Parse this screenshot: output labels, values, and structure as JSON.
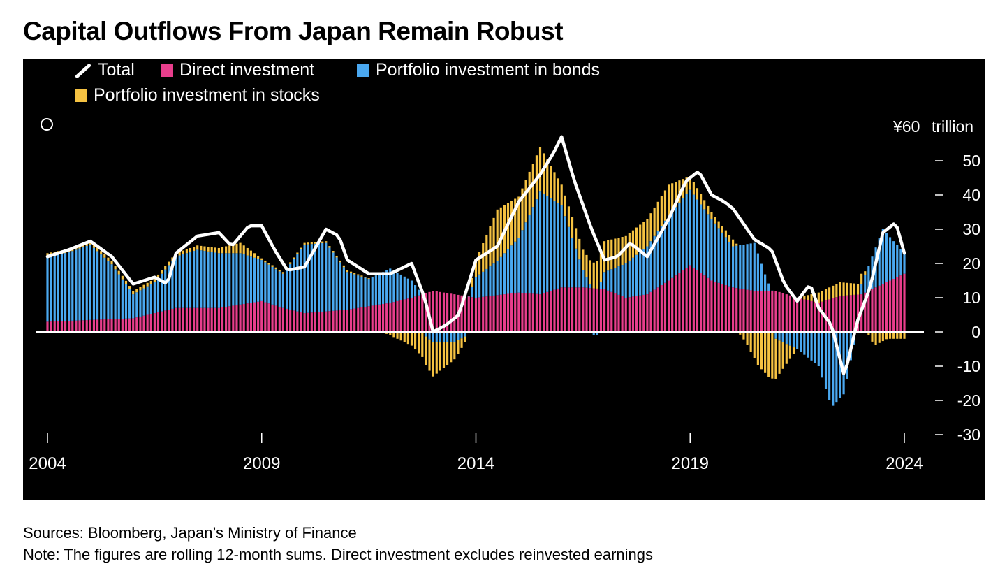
{
  "title": "Capital Outflows From Japan Remain Robust",
  "footer": {
    "sources": "Sources: Bloomberg, Japan’s Ministry of Finance",
    "note": "Note: The figures are rolling 12-month sums. Direct investment excludes reinvested earnings"
  },
  "colors": {
    "background": "#000000",
    "total": "#ffffff",
    "direct": "#e83e8c",
    "bonds": "#4aa8f0",
    "stocks": "#f5c242",
    "zero_line": "#ffffff"
  },
  "chart_data": {
    "type": "bar",
    "stacked": true,
    "title": "Capital Outflows From Japan Remain Robust",
    "legend_placement": "top-left",
    "grid": false,
    "y_unit_label": "trillion",
    "y_top_label": "¥60",
    "ylim": [
      -30,
      60
    ],
    "y_ticks": [
      -30,
      -20,
      -10,
      0,
      10,
      20,
      30,
      40,
      50
    ],
    "x_ticks": [
      "2004",
      "2009",
      "2014",
      "2019",
      "2024"
    ],
    "x_range": [
      "2004-01",
      "2024-01"
    ],
    "frequency": "monthly",
    "anchors": {
      "direct": [
        [
          2004.0,
          3
        ],
        [
          2005.0,
          3.5
        ],
        [
          2006.0,
          4
        ],
        [
          2006.5,
          5.5
        ],
        [
          2007.0,
          7
        ],
        [
          2008.0,
          7
        ],
        [
          2008.5,
          8
        ],
        [
          2009.0,
          9
        ],
        [
          2009.5,
          7
        ],
        [
          2010.0,
          5.5
        ],
        [
          2011.0,
          6.5
        ],
        [
          2012.0,
          8.5
        ],
        [
          2012.5,
          10
        ],
        [
          2013.0,
          12
        ],
        [
          2013.5,
          11
        ],
        [
          2014.0,
          10
        ],
        [
          2015.0,
          11.5
        ],
        [
          2015.5,
          11
        ],
        [
          2016.0,
          13
        ],
        [
          2016.5,
          13
        ],
        [
          2017.0,
          12.5
        ],
        [
          2017.5,
          10
        ],
        [
          2018.0,
          11
        ],
        [
          2018.5,
          15
        ],
        [
          2019.0,
          19.5
        ],
        [
          2019.5,
          15
        ],
        [
          2020.0,
          13
        ],
        [
          2020.5,
          12
        ],
        [
          2021.0,
          12
        ],
        [
          2021.5,
          10
        ],
        [
          2022.0,
          8.5
        ],
        [
          2022.5,
          10.5
        ],
        [
          2023.0,
          11
        ],
        [
          2023.5,
          14
        ],
        [
          2024.0,
          17
        ]
      ],
      "bonds": [
        [
          2004.0,
          19
        ],
        [
          2004.5,
          20
        ],
        [
          2005.0,
          22
        ],
        [
          2005.5,
          16
        ],
        [
          2006.0,
          7
        ],
        [
          2006.5,
          9
        ],
        [
          2007.0,
          15
        ],
        [
          2007.5,
          17
        ],
        [
          2008.0,
          16
        ],
        [
          2008.5,
          15
        ],
        [
          2009.0,
          12
        ],
        [
          2009.5,
          10
        ],
        [
          2010.0,
          20
        ],
        [
          2010.5,
          20
        ],
        [
          2011.0,
          11
        ],
        [
          2011.5,
          8
        ],
        [
          2012.0,
          10
        ],
        [
          2012.5,
          5
        ],
        [
          2012.8,
          -1
        ],
        [
          2013.0,
          -3
        ],
        [
          2013.5,
          -3
        ],
        [
          2013.8,
          -1
        ],
        [
          2014.0,
          6
        ],
        [
          2014.5,
          10
        ],
        [
          2015.0,
          16
        ],
        [
          2015.5,
          30
        ],
        [
          2016.0,
          24
        ],
        [
          2016.5,
          5
        ],
        [
          2016.8,
          -2
        ],
        [
          2017.0,
          5
        ],
        [
          2017.5,
          10
        ],
        [
          2018.0,
          14
        ],
        [
          2018.5,
          19
        ],
        [
          2019.0,
          22
        ],
        [
          2019.5,
          18
        ],
        [
          2020.0,
          12
        ],
        [
          2020.5,
          14
        ],
        [
          2020.8,
          3
        ],
        [
          2021.0,
          -2
        ],
        [
          2021.5,
          -5
        ],
        [
          2022.0,
          -10
        ],
        [
          2022.3,
          -22
        ],
        [
          2022.6,
          -18
        ],
        [
          2022.8,
          -5
        ],
        [
          2023.0,
          3
        ],
        [
          2023.5,
          16
        ],
        [
          2024.0,
          6
        ]
      ],
      "stocks": [
        [
          2004.0,
          1
        ],
        [
          2005.0,
          1
        ],
        [
          2006.0,
          1
        ],
        [
          2007.0,
          1
        ],
        [
          2008.0,
          1.5
        ],
        [
          2008.5,
          3
        ],
        [
          2009.0,
          0.5
        ],
        [
          2010.0,
          0.5
        ],
        [
          2011.0,
          0.5
        ],
        [
          2011.8,
          0
        ],
        [
          2012.0,
          -1
        ],
        [
          2012.5,
          -4
        ],
        [
          2012.8,
          -8
        ],
        [
          2013.0,
          -10
        ],
        [
          2013.5,
          -5
        ],
        [
          2013.8,
          -1
        ],
        [
          2014.0,
          5
        ],
        [
          2014.5,
          15
        ],
        [
          2015.0,
          12
        ],
        [
          2015.5,
          13
        ],
        [
          2016.0,
          6
        ],
        [
          2016.5,
          6
        ],
        [
          2017.0,
          9
        ],
        [
          2017.5,
          8
        ],
        [
          2018.0,
          8
        ],
        [
          2018.5,
          9
        ],
        [
          2019.0,
          4
        ],
        [
          2019.5,
          2
        ],
        [
          2020.0,
          2
        ],
        [
          2020.3,
          -3
        ],
        [
          2020.6,
          -10
        ],
        [
          2020.9,
          -14
        ],
        [
          2021.2,
          -7
        ],
        [
          2021.5,
          0
        ],
        [
          2022.0,
          3
        ],
        [
          2022.5,
          4
        ],
        [
          2023.0,
          3
        ],
        [
          2023.3,
          -4
        ],
        [
          2023.6,
          -2
        ],
        [
          2024.0,
          -2
        ]
      ],
      "total": [
        [
          2004.0,
          22
        ],
        [
          2004.5,
          24
        ],
        [
          2005.0,
          26.5
        ],
        [
          2005.5,
          22
        ],
        [
          2006.0,
          14
        ],
        [
          2006.5,
          16
        ],
        [
          2006.8,
          14
        ],
        [
          2007.0,
          23
        ],
        [
          2007.5,
          28
        ],
        [
          2008.0,
          29
        ],
        [
          2008.3,
          25
        ],
        [
          2008.7,
          31
        ],
        [
          2009.0,
          31
        ],
        [
          2009.3,
          24
        ],
        [
          2009.6,
          18
        ],
        [
          2010.0,
          19
        ],
        [
          2010.5,
          30
        ],
        [
          2010.8,
          28
        ],
        [
          2011.0,
          21
        ],
        [
          2011.5,
          17
        ],
        [
          2012.0,
          17
        ],
        [
          2012.5,
          20
        ],
        [
          2012.8,
          10
        ],
        [
          2013.0,
          0
        ],
        [
          2013.3,
          2
        ],
        [
          2013.6,
          5
        ],
        [
          2014.0,
          21
        ],
        [
          2014.5,
          25
        ],
        [
          2015.0,
          38
        ],
        [
          2015.5,
          46
        ],
        [
          2015.8,
          52
        ],
        [
          2016.0,
          57
        ],
        [
          2016.3,
          44
        ],
        [
          2016.7,
          30
        ],
        [
          2017.0,
          21
        ],
        [
          2017.3,
          22
        ],
        [
          2017.6,
          26
        ],
        [
          2018.0,
          22
        ],
        [
          2018.5,
          33
        ],
        [
          2018.9,
          44
        ],
        [
          2019.2,
          47
        ],
        [
          2019.5,
          40
        ],
        [
          2019.8,
          38
        ],
        [
          2020.0,
          36
        ],
        [
          2020.5,
          27
        ],
        [
          2020.9,
          24
        ],
        [
          2021.2,
          14
        ],
        [
          2021.5,
          9
        ],
        [
          2021.8,
          14
        ],
        [
          2022.0,
          7
        ],
        [
          2022.3,
          2
        ],
        [
          2022.6,
          -13
        ],
        [
          2022.9,
          3
        ],
        [
          2023.2,
          13
        ],
        [
          2023.5,
          29
        ],
        [
          2023.8,
          32
        ],
        [
          2024.0,
          23
        ]
      ]
    }
  }
}
